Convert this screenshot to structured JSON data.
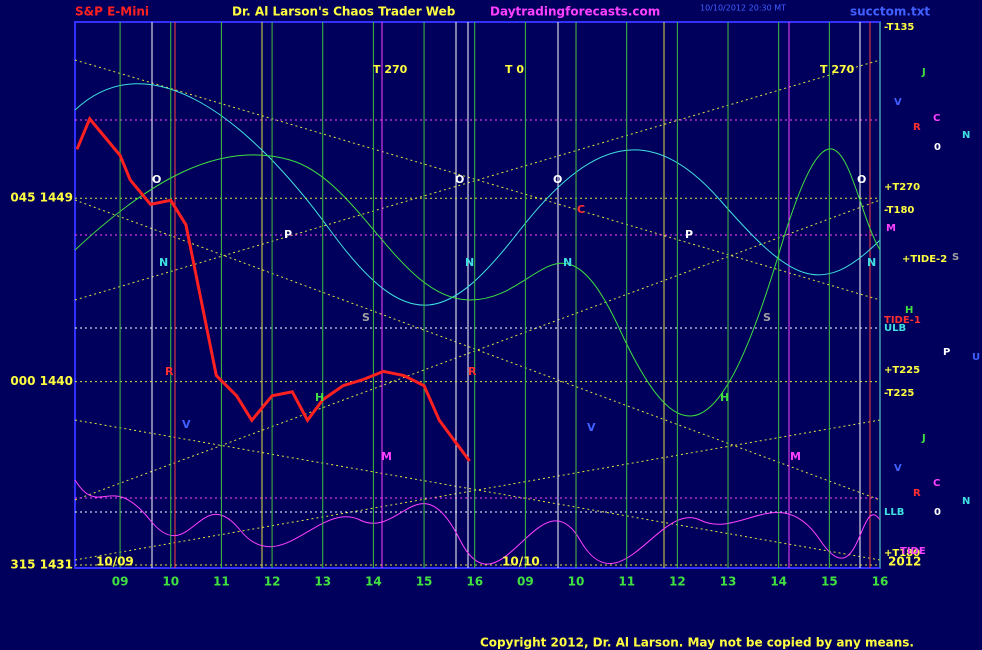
{
  "chart_data": {
    "type": "line",
    "title": "S&P E-Mini",
    "subtitle": "Dr. Al Larson's Chaos Trader Web",
    "site": "Daytradingforecasts.com",
    "timestamp": "10/10/2012 20:30 MT",
    "file": "succtom.txt",
    "copyright": "Copyright 2012, Dr. Al Larson. May not be copied by any means.",
    "date_labels": [
      "10/09",
      "10/10",
      "2012"
    ],
    "annotations": [
      "T 270",
      "T 0",
      "T 270",
      "O",
      "O",
      "O",
      "O",
      "P",
      "P",
      "N",
      "N",
      "N",
      "N",
      "S",
      "S",
      "M",
      "M",
      "H",
      "H",
      "V",
      "V",
      "R",
      "R",
      "C"
    ],
    "side_labels": [
      "-T135",
      "+T270",
      "-T180",
      "+TIDE-2",
      "TIDE-1",
      "ULB",
      "+T225",
      "-T225",
      "LLB",
      "+T180",
      "TIDE",
      "J",
      "V",
      "R",
      "C",
      "N",
      "0",
      "M",
      "S",
      "H",
      "P",
      "U",
      "J",
      "V",
      "R",
      "C",
      "N",
      "0"
    ],
    "xlim": [
      8.11,
      24
    ],
    "xticks": [
      {
        "value": 9,
        "label": "09"
      },
      10,
      11,
      12,
      13,
      14,
      15,
      16,
      {
        "value": 17,
        "label": "09"
      },
      {
        "value": 18,
        "label": "10"
      },
      {
        "value": 19,
        "label": "11"
      },
      {
        "value": 20,
        "label": "12"
      },
      {
        "value": 21,
        "label": "13"
      },
      {
        "value": 22,
        "label": "14"
      },
      {
        "value": 23,
        "label": "15"
      },
      {
        "value": 24,
        "label": "16"
      }
    ],
    "ylim": [
      1430.85,
      1457.65
    ],
    "yticks": [
      {
        "value": 1431,
        "label": "315 1431"
      },
      {
        "value": 1440,
        "label": "000 1440"
      },
      {
        "value": 1449,
        "label": "045 1449"
      }
    ],
    "grid": true,
    "series": [
      {
        "name": "S&P E-Mini",
        "color": "#ff2020",
        "x": [
          8.15,
          8.4,
          8.6,
          9.0,
          9.2,
          9.6,
          10.0,
          10.3,
          10.6,
          10.9,
          11.3,
          11.6,
          12.0,
          12.4,
          12.7,
          13.0,
          13.4,
          13.8,
          14.2,
          14.6,
          15.0,
          15.3,
          15.6,
          15.9
        ],
        "values": [
          1451.4,
          1452.9,
          1452.3,
          1451.1,
          1449.9,
          1448.7,
          1448.9,
          1447.7,
          1444.0,
          1440.3,
          1439.3,
          1438.1,
          1439.3,
          1439.5,
          1438.1,
          1439.1,
          1439.8,
          1440.1,
          1440.5,
          1440.3,
          1439.8,
          1438.1,
          1437.1,
          1436.1
        ]
      }
    ]
  }
}
